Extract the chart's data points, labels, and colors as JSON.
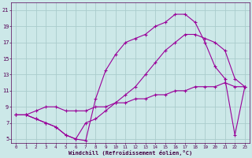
{
  "xlabel": "Windchill (Refroidissement éolien,°C)",
  "bg_color": "#cce8e8",
  "line_color": "#990099",
  "grid_color": "#aacccc",
  "xlim": [
    -0.5,
    23.5
  ],
  "ylim": [
    4.5,
    22
  ],
  "xticks": [
    0,
    1,
    2,
    3,
    4,
    5,
    6,
    7,
    8,
    9,
    10,
    11,
    12,
    13,
    14,
    15,
    16,
    17,
    18,
    19,
    20,
    21,
    22,
    23
  ],
  "yticks": [
    5,
    7,
    9,
    11,
    13,
    15,
    17,
    19,
    21
  ],
  "line1_x": [
    0,
    1,
    2,
    3,
    4,
    5,
    6,
    7,
    8,
    9,
    10,
    11,
    12,
    13,
    14,
    15,
    16,
    17,
    18,
    19,
    20,
    21,
    22,
    23
  ],
  "line1_y": [
    8,
    8,
    8.5,
    9,
    9,
    8.5,
    8.5,
    8.5,
    9,
    9,
    9.5,
    9.5,
    10,
    10,
    10.5,
    10.5,
    11,
    11,
    11.5,
    11.5,
    11.5,
    12,
    11.5,
    11.5
  ],
  "line2_x": [
    0,
    1,
    2,
    3,
    4,
    5,
    6,
    7,
    8,
    9,
    10,
    11,
    12,
    13,
    14,
    15,
    16,
    17,
    18,
    19,
    20,
    21,
    22,
    23
  ],
  "line2_y": [
    8,
    8,
    7.5,
    7,
    6.5,
    5.5,
    5,
    4.8,
    10,
    13.5,
    15.5,
    17,
    17.5,
    18,
    19,
    19.5,
    20.5,
    20.5,
    19.5,
    17,
    14,
    12.5,
    5.5,
    11.5
  ],
  "line2_markers_x": [
    0,
    2,
    3,
    4,
    5,
    6,
    8,
    9,
    11,
    12,
    13,
    14,
    15,
    16,
    17,
    18,
    19,
    20,
    21,
    22,
    23
  ],
  "line3_x": [
    0,
    1,
    2,
    3,
    4,
    5,
    6,
    7,
    8,
    9,
    10,
    11,
    12,
    13,
    14,
    15,
    16,
    17,
    18,
    19,
    20,
    21,
    22,
    23
  ],
  "line3_y": [
    8,
    8,
    7.5,
    7,
    6.5,
    5.5,
    5,
    7,
    7.5,
    8.5,
    9.5,
    10.5,
    11.5,
    13,
    14.5,
    16,
    17,
    18,
    18,
    17.5,
    17,
    16,
    12.5,
    11.5
  ],
  "line3_markers_x": [
    0,
    3,
    4,
    5,
    6,
    8,
    10,
    11,
    12,
    13,
    14,
    15,
    16,
    17,
    18,
    19,
    20,
    21,
    22,
    23
  ]
}
